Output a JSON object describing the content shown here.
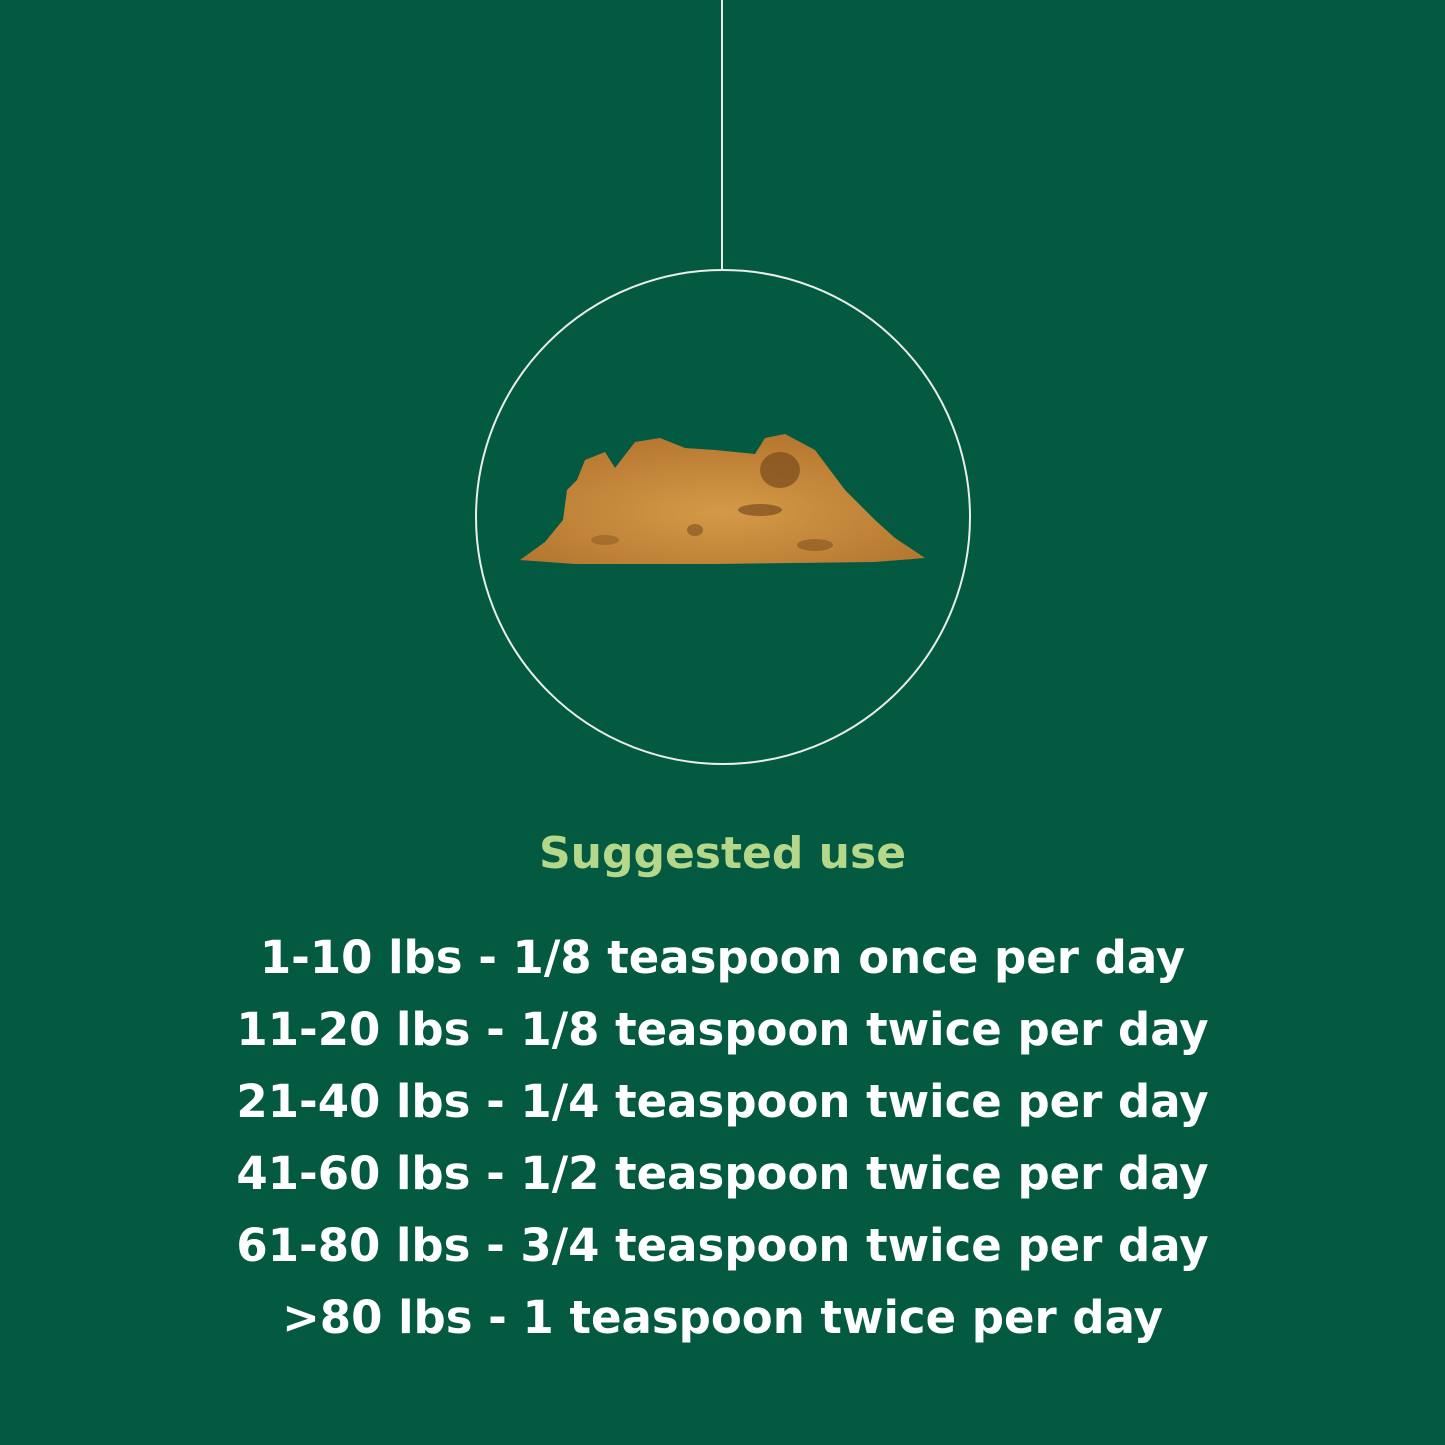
{
  "colors": {
    "background": "#045a41",
    "title": "#b4d789",
    "text": "#ffffff",
    "powder": "#c98a3a"
  },
  "heading": "Suggested use",
  "dosage": [
    "1-10 lbs - 1/8 teaspoon once per day",
    "11-20 lbs - 1/8 teaspoon twice per day",
    "21-40 lbs - 1/4 teaspoon twice per day",
    "41-60 lbs - 1/2 teaspoon twice per day",
    "61-80 lbs - 3/4 teaspoon twice per day",
    ">80 lbs - 1 teaspoon twice per day"
  ]
}
